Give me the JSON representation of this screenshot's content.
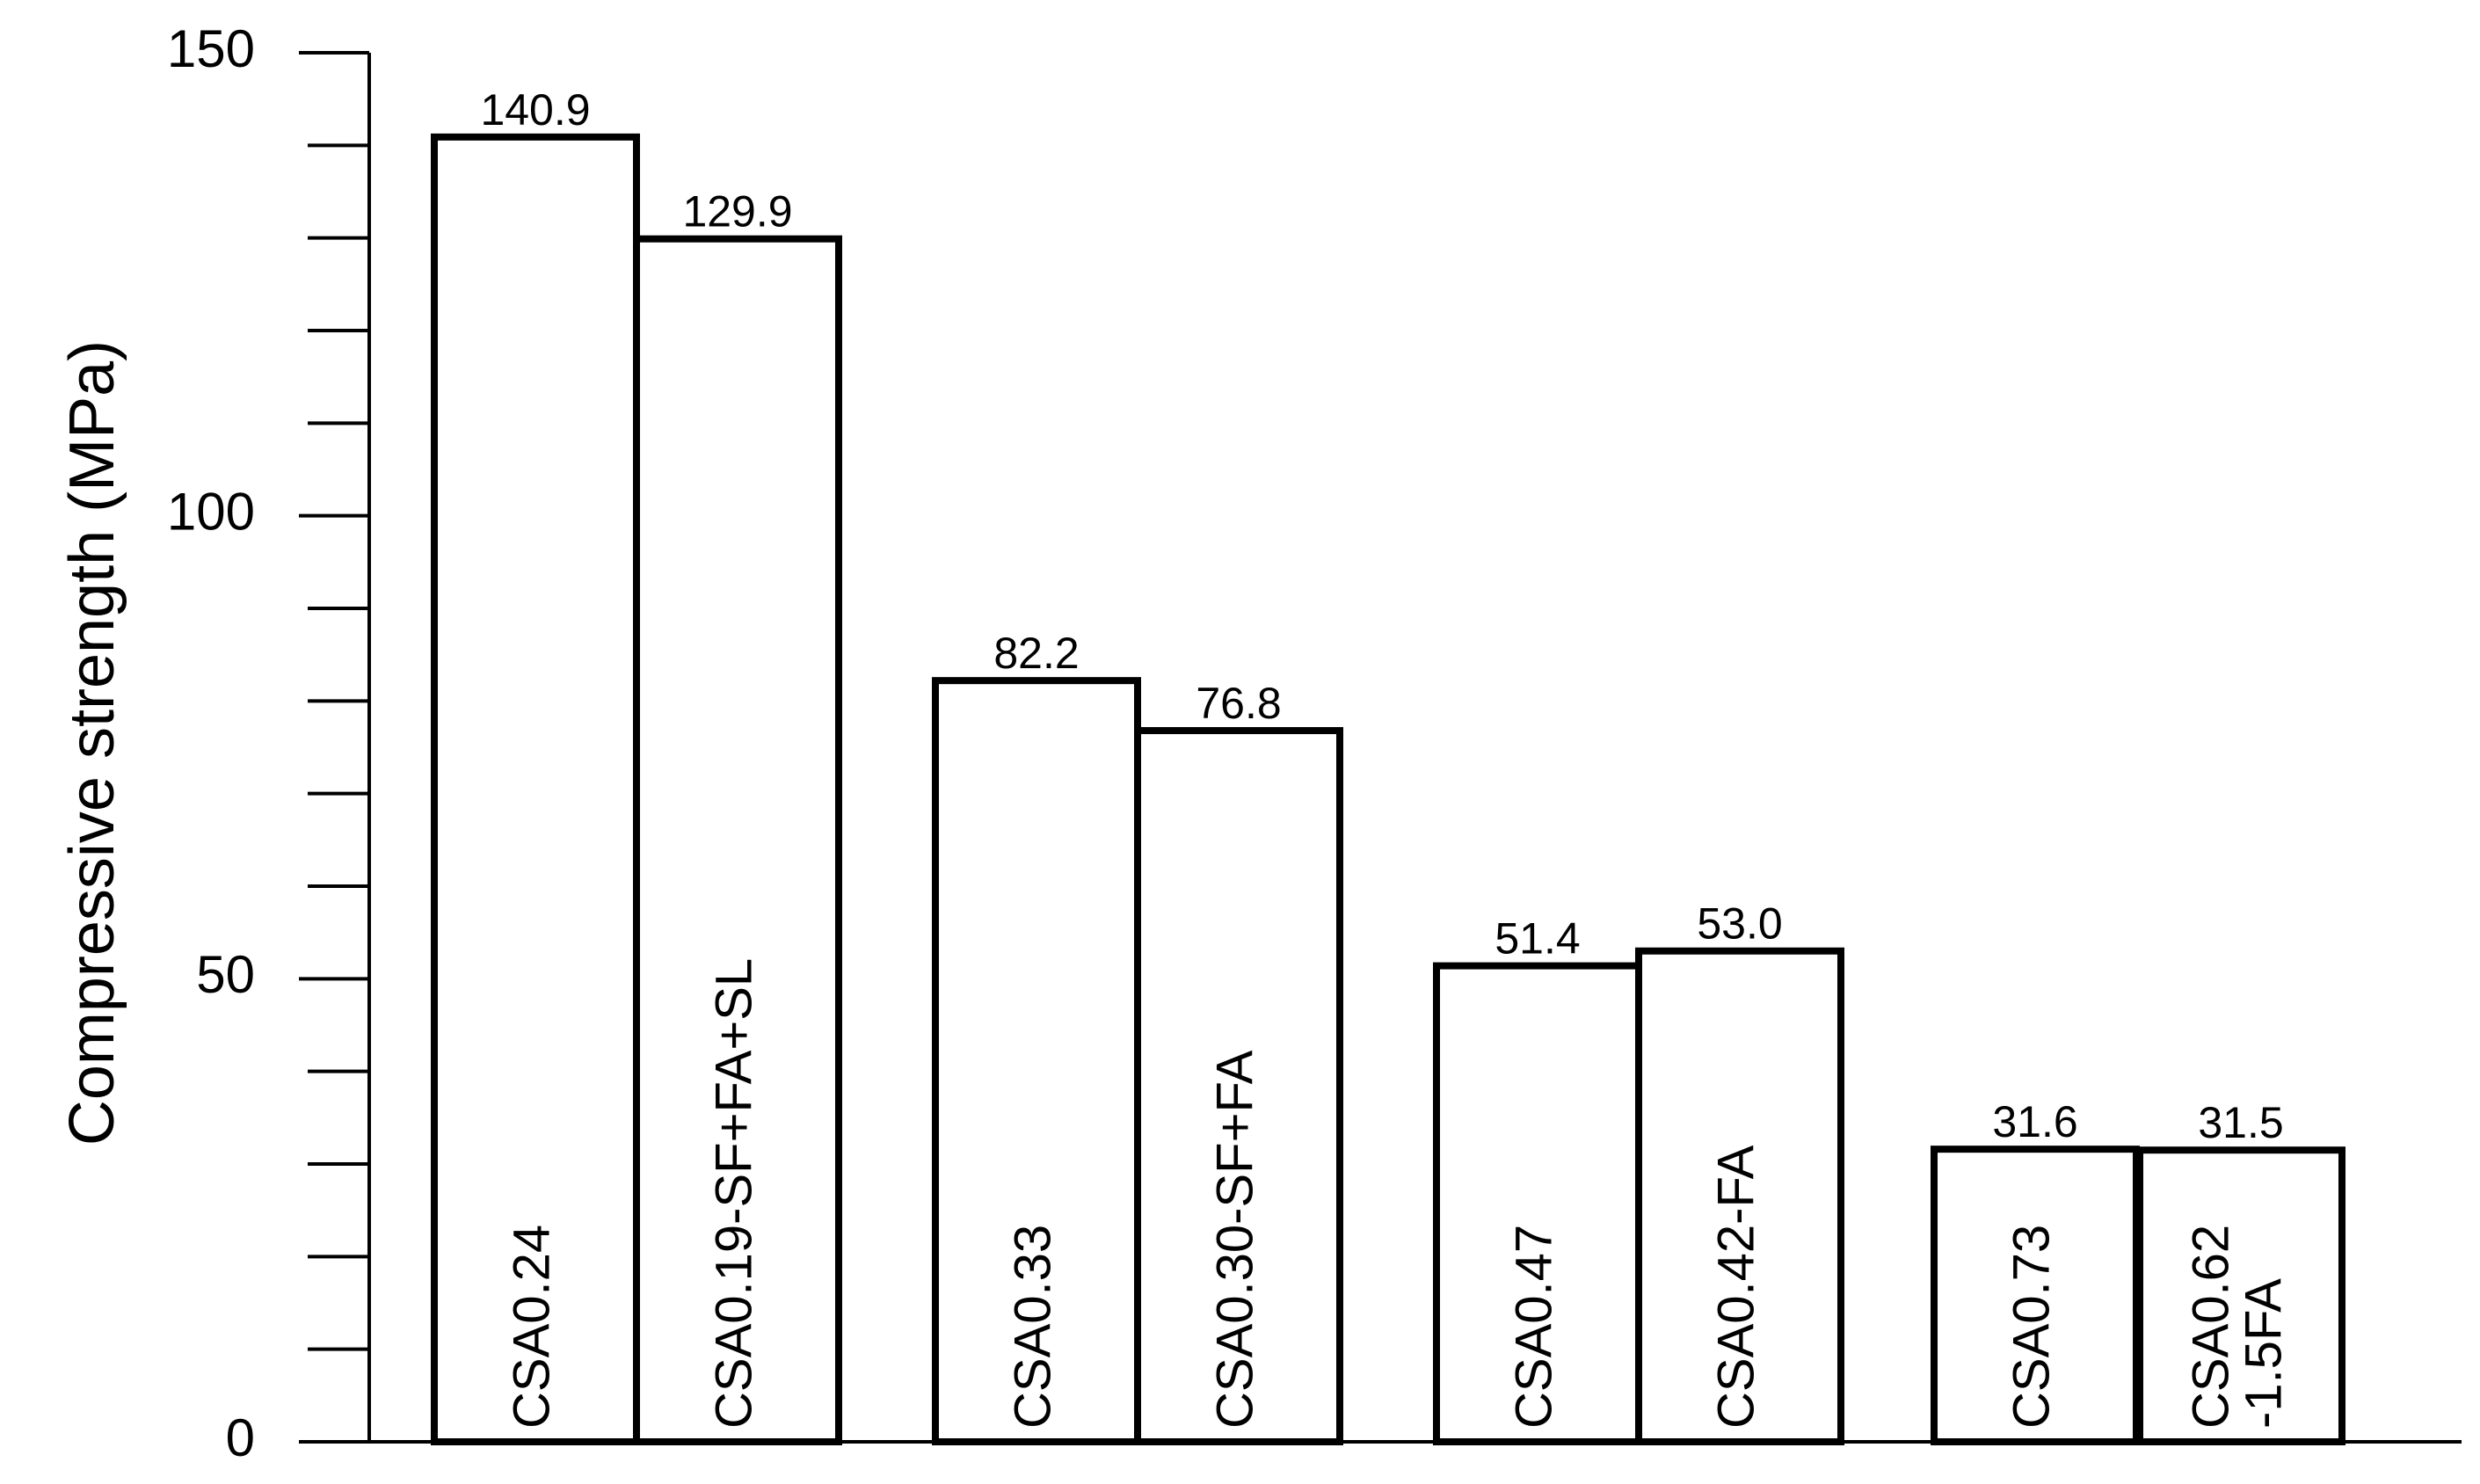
{
  "chart_data": {
    "type": "bar",
    "ylabel": "Compressive strength (MPa)",
    "xlabel": "",
    "ylim": [
      0,
      150
    ],
    "y_major_ticks": [
      0,
      50,
      100,
      150
    ],
    "y_minor_step": 10,
    "grid": false,
    "bars": [
      {
        "label": "CSA0.24",
        "value": 140.9,
        "value_text": "140.9",
        "group": 1
      },
      {
        "label": "CSA0.19-SF+FA+SL",
        "value": 129.9,
        "value_text": "129.9",
        "group": 1
      },
      {
        "label": "CSA0.33",
        "value": 82.2,
        "value_text": "82.2",
        "group": 2
      },
      {
        "label": "CSA0.30-SF+FA",
        "value": 76.8,
        "value_text": "76.8",
        "group": 2
      },
      {
        "label": "CSA0.47",
        "value": 51.4,
        "value_text": "51.4",
        "group": 3
      },
      {
        "label": "CSA0.42-FA",
        "value": 53.0,
        "value_text": "53.0",
        "group": 3
      },
      {
        "label": "CSA0.73",
        "value": 31.6,
        "value_text": "31.6",
        "group": 4
      },
      {
        "label": "CSA0.62\n-1.5FA",
        "value": 31.5,
        "value_text": "31.5",
        "group": 4
      }
    ]
  }
}
